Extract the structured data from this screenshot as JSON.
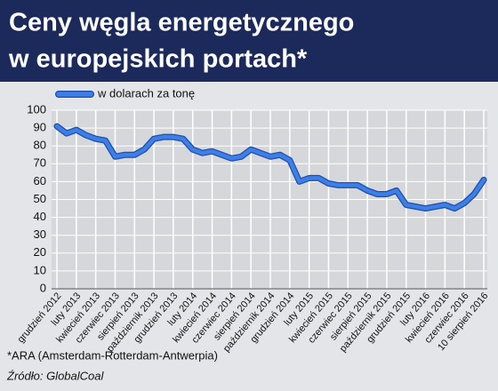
{
  "chart_data": {
    "type": "line",
    "title": "Ceny węgla energetycznego w europejskich portach*",
    "title_lines": [
      "Ceny węgla energetycznego",
      "w europejskich portach*"
    ],
    "categories": [
      "grudzień 2012",
      null,
      "luty 2013",
      null,
      "kwiecień 2013",
      null,
      "czerwiec 2013",
      null,
      "sierpień 2013",
      null,
      "październik 2013",
      null,
      "grudzień 2013",
      null,
      "luty 2014",
      null,
      "kwiecień 2014",
      null,
      "czerwiec 2014",
      null,
      "sierpień 2014",
      null,
      "październik 2014",
      null,
      "grudzień 2014",
      null,
      "luty 2015",
      null,
      "kwiecień 2015",
      null,
      "czerwiec 2015",
      null,
      "sierpień 2015",
      null,
      "październik 2015",
      null,
      "grudzień 2015",
      null,
      "luty 2016",
      null,
      "kwiecień 2016",
      null,
      "czerwiec 2016",
      null,
      "10 sierpień 2016"
    ],
    "series": [
      {
        "name": "w dolarach za tonę",
        "color": "#3d7fe6",
        "values": [
          91,
          87,
          89,
          86,
          84,
          83,
          74,
          75,
          75,
          78,
          84,
          85,
          85,
          84,
          78,
          76,
          77,
          75,
          73,
          74,
          78,
          76,
          74,
          75,
          72,
          60,
          62,
          62,
          59,
          58,
          58,
          58,
          55,
          53,
          53,
          55,
          47,
          46,
          45,
          46,
          47,
          45,
          48,
          53,
          61
        ]
      }
    ],
    "ylim": [
      0,
      100
    ],
    "yticks": [
      0,
      10,
      20,
      30,
      40,
      50,
      60,
      70,
      80,
      90,
      100
    ],
    "grid": true,
    "notes": [
      "*ARA (Amsterdam-Rotterdam-Antwerpia)",
      "Źródło: GlobalCoal"
    ]
  }
}
